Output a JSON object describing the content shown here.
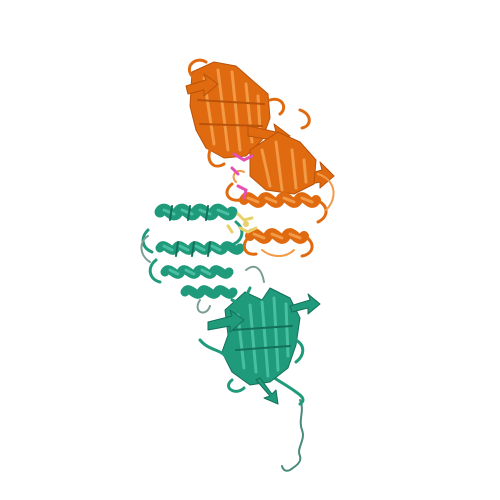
{
  "image": {
    "kind": "protein cartoon rendering",
    "background": "#ffffff",
    "chains": [
      {
        "id": "orange-chain",
        "color": "#e06a0f",
        "highlight": "#f29a45",
        "shade": "#b9520a"
      },
      {
        "id": "teal-chain",
        "color": "#1f9a7b",
        "highlight": "#48bfa0",
        "shade": "#14705a"
      }
    ],
    "ligands": [
      {
        "id": "magenta-ligand",
        "color": "#e64fb2"
      },
      {
        "id": "yellow-ligand",
        "color": "#e8d06a"
      }
    ]
  }
}
